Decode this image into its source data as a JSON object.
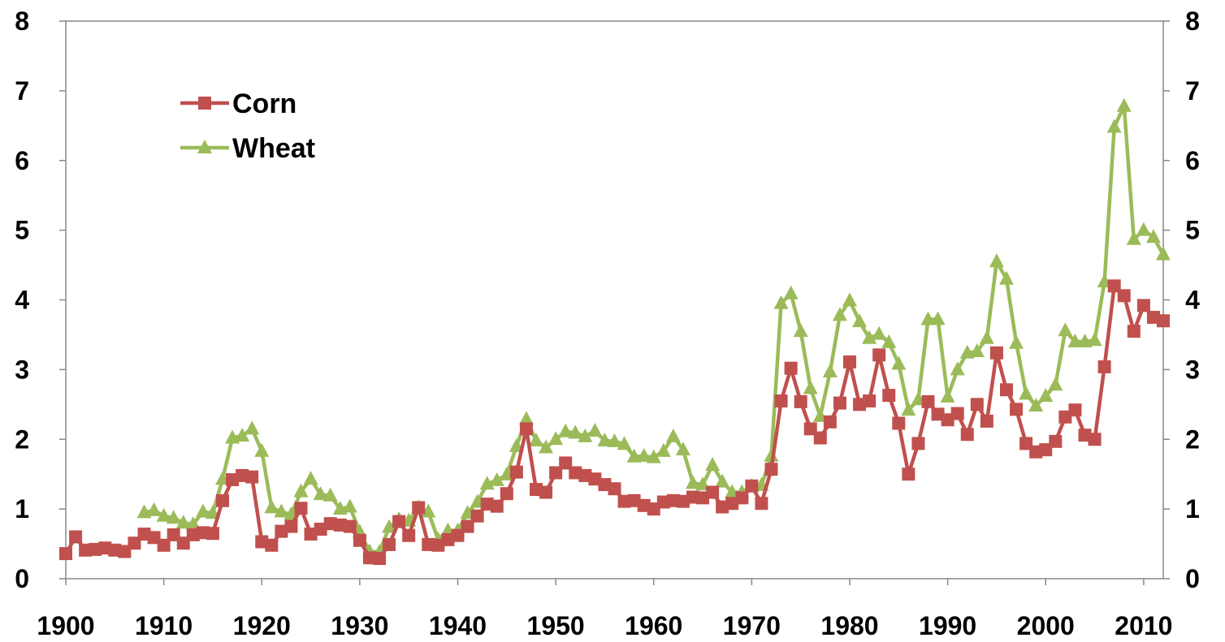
{
  "chart_data": {
    "type": "line",
    "x": [
      1900,
      1901,
      1902,
      1903,
      1904,
      1905,
      1906,
      1907,
      1908,
      1909,
      1910,
      1911,
      1912,
      1913,
      1914,
      1915,
      1916,
      1917,
      1918,
      1919,
      1920,
      1921,
      1922,
      1923,
      1924,
      1925,
      1926,
      1927,
      1928,
      1929,
      1930,
      1931,
      1932,
      1933,
      1934,
      1935,
      1936,
      1937,
      1938,
      1939,
      1940,
      1941,
      1942,
      1943,
      1944,
      1945,
      1946,
      1947,
      1948,
      1949,
      1950,
      1951,
      1952,
      1953,
      1954,
      1955,
      1956,
      1957,
      1958,
      1959,
      1960,
      1961,
      1962,
      1963,
      1964,
      1965,
      1966,
      1967,
      1968,
      1969,
      1970,
      1971,
      1972,
      1973,
      1974,
      1975,
      1976,
      1977,
      1978,
      1979,
      1980,
      1981,
      1982,
      1983,
      1984,
      1985,
      1986,
      1987,
      1988,
      1989,
      1990,
      1991,
      1992,
      1993,
      1994,
      1995,
      1996,
      1997,
      1998,
      1999,
      2000,
      2001,
      2002,
      2003,
      2004,
      2005,
      2006,
      2007,
      2008,
      2009,
      2010,
      2011,
      2012
    ],
    "series": [
      {
        "name": "Corn",
        "color": "#c0504d",
        "marker": "square",
        "values": [
          0.36,
          0.6,
          0.41,
          0.42,
          0.44,
          0.41,
          0.39,
          0.51,
          0.64,
          0.59,
          0.48,
          0.63,
          0.51,
          0.63,
          0.66,
          0.65,
          1.12,
          1.42,
          1.48,
          1.46,
          0.53,
          0.48,
          0.68,
          0.75,
          1.01,
          0.64,
          0.71,
          0.79,
          0.77,
          0.75,
          0.55,
          0.3,
          0.29,
          0.49,
          0.82,
          0.62,
          1.02,
          0.49,
          0.48,
          0.56,
          0.62,
          0.75,
          0.9,
          1.07,
          1.04,
          1.22,
          1.53,
          2.15,
          1.28,
          1.24,
          1.52,
          1.66,
          1.52,
          1.48,
          1.43,
          1.35,
          1.29,
          1.11,
          1.12,
          1.05,
          1.0,
          1.1,
          1.12,
          1.11,
          1.17,
          1.16,
          1.24,
          1.03,
          1.08,
          1.16,
          1.33,
          1.08,
          1.57,
          2.55,
          3.02,
          2.54,
          2.15,
          2.02,
          2.25,
          2.52,
          3.11,
          2.5,
          2.55,
          3.21,
          2.63,
          2.23,
          1.5,
          1.94,
          2.54,
          2.36,
          2.28,
          2.37,
          2.07,
          2.5,
          2.26,
          3.24,
          2.71,
          2.43,
          1.94,
          1.82,
          1.85,
          1.97,
          2.32,
          2.42,
          2.06,
          2.0,
          3.04,
          4.2,
          4.06,
          3.55,
          3.92,
          3.75,
          3.7
        ]
      },
      {
        "name": "Wheat",
        "color": "#9bbb59",
        "marker": "triangle",
        "values": [
          null,
          null,
          null,
          null,
          null,
          null,
          null,
          null,
          0.95,
          0.98,
          0.9,
          0.87,
          0.8,
          0.78,
          0.96,
          0.94,
          1.43,
          2.02,
          2.05,
          2.15,
          1.83,
          1.02,
          0.96,
          0.92,
          1.25,
          1.43,
          1.21,
          1.19,
          1.0,
          1.03,
          0.67,
          0.39,
          0.38,
          0.74,
          0.85,
          0.83,
          1.02,
          0.96,
          0.56,
          0.69,
          0.69,
          0.94,
          1.1,
          1.36,
          1.41,
          1.49,
          1.9,
          2.29,
          1.98,
          1.88,
          2.0,
          2.11,
          2.09,
          2.04,
          2.12,
          1.98,
          1.97,
          1.93,
          1.75,
          1.76,
          1.74,
          1.83,
          2.04,
          1.85,
          1.37,
          1.35,
          1.63,
          1.39,
          1.24,
          1.24,
          1.33,
          1.34,
          1.76,
          3.95,
          4.09,
          3.55,
          2.73,
          2.33,
          2.97,
          3.78,
          3.99,
          3.69,
          3.45,
          3.51,
          3.39,
          3.08,
          2.42,
          2.57,
          3.72,
          3.72,
          2.61,
          3.0,
          3.24,
          3.26,
          3.45,
          4.55,
          4.3,
          3.38,
          2.65,
          2.48,
          2.62,
          2.78,
          3.56,
          3.4,
          3.4,
          3.42,
          4.26,
          6.48,
          6.78,
          4.87,
          5.0,
          4.9,
          4.65
        ]
      }
    ],
    "xticks": [
      "1900",
      "1910",
      "1920",
      "1930",
      "1940",
      "1950",
      "1960",
      "1970",
      "1980",
      "1990",
      "2000",
      "2010"
    ],
    "yticks": [
      "0",
      "1",
      "2",
      "3",
      "4",
      "5",
      "6",
      "7",
      "8"
    ],
    "ylim": [
      0,
      8
    ],
    "xlim": [
      1900,
      2012
    ],
    "title": "",
    "xlabel": "",
    "ylabel": "",
    "legend": {
      "position": "top-left",
      "entries": [
        "Corn",
        "Wheat"
      ]
    },
    "grid": false,
    "right_axis_mirrors_left": true
  }
}
